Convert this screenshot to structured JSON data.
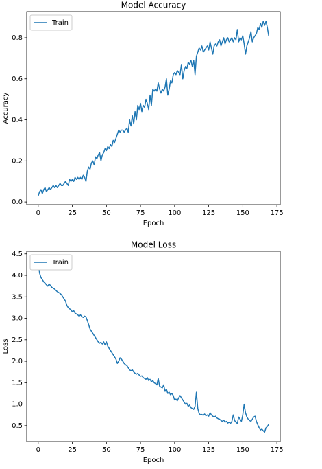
{
  "chart_data": [
    {
      "type": "line",
      "title": "Model Accuracy",
      "xlabel": "Epoch",
      "ylabel": "Accuracy",
      "legend": "upper left",
      "xlim": [
        -8.45,
        177.45
      ],
      "ylim": [
        -0.013,
        0.927
      ],
      "xticks": [
        0,
        25,
        50,
        75,
        100,
        125,
        150,
        175
      ],
      "yticks": [
        {
          "value": 0,
          "label": "0.0"
        },
        0.2,
        0.4,
        0.6,
        0.8
      ],
      "x": [
        0,
        1,
        2,
        3,
        4,
        5,
        6,
        7,
        8,
        9,
        10,
        11,
        12,
        13,
        14,
        15,
        16,
        17,
        18,
        19,
        20,
        21,
        22,
        23,
        24,
        25,
        26,
        27,
        28,
        29,
        30,
        31,
        32,
        33,
        34,
        35,
        36,
        37,
        38,
        39,
        40,
        41,
        42,
        43,
        44,
        45,
        46,
        47,
        48,
        49,
        50,
        51,
        52,
        53,
        54,
        55,
        56,
        57,
        58,
        59,
        60,
        61,
        62,
        63,
        64,
        65,
        66,
        67,
        68,
        69,
        70,
        71,
        72,
        73,
        74,
        75,
        76,
        77,
        78,
        79,
        80,
        81,
        82,
        83,
        84,
        85,
        86,
        87,
        88,
        89,
        90,
        91,
        92,
        93,
        94,
        95,
        96,
        97,
        98,
        99,
        100,
        101,
        102,
        103,
        104,
        105,
        106,
        107,
        108,
        109,
        110,
        111,
        112,
        113,
        114,
        115,
        116,
        117,
        118,
        119,
        120,
        121,
        122,
        123,
        124,
        125,
        126,
        127,
        128,
        129,
        130,
        131,
        132,
        133,
        134,
        135,
        136,
        137,
        138,
        139,
        140,
        141,
        142,
        143,
        144,
        145,
        146,
        147,
        148,
        149,
        150,
        151,
        152,
        153,
        154,
        155,
        156,
        157,
        158,
        159,
        160,
        161,
        162,
        163,
        164,
        165,
        166,
        167,
        168,
        169
      ],
      "series": [
        {
          "name": "Train",
          "color": "#1f77b4",
          "values": [
            0.03,
            0.05,
            0.06,
            0.04,
            0.06,
            0.07,
            0.05,
            0.06,
            0.07,
            0.06,
            0.07,
            0.08,
            0.07,
            0.08,
            0.07,
            0.08,
            0.09,
            0.08,
            0.08,
            0.09,
            0.1,
            0.09,
            0.08,
            0.11,
            0.1,
            0.11,
            0.1,
            0.12,
            0.11,
            0.12,
            0.11,
            0.12,
            0.11,
            0.13,
            0.12,
            0.1,
            0.15,
            0.17,
            0.16,
            0.19,
            0.2,
            0.18,
            0.22,
            0.21,
            0.23,
            0.24,
            0.2,
            0.23,
            0.24,
            0.26,
            0.25,
            0.27,
            0.26,
            0.28,
            0.27,
            0.3,
            0.29,
            0.31,
            0.33,
            0.35,
            0.34,
            0.35,
            0.35,
            0.34,
            0.35,
            0.36,
            0.34,
            0.4,
            0.37,
            0.42,
            0.38,
            0.44,
            0.4,
            0.47,
            0.45,
            0.48,
            0.44,
            0.47,
            0.46,
            0.5,
            0.48,
            0.45,
            0.52,
            0.47,
            0.55,
            0.54,
            0.55,
            0.54,
            0.58,
            0.55,
            0.53,
            0.55,
            0.54,
            0.56,
            0.6,
            0.52,
            0.55,
            0.59,
            0.58,
            0.62,
            0.63,
            0.62,
            0.64,
            0.63,
            0.62,
            0.67,
            0.6,
            0.64,
            0.66,
            0.65,
            0.68,
            0.67,
            0.69,
            0.66,
            0.69,
            0.62,
            0.71,
            0.73,
            0.75,
            0.74,
            0.76,
            0.73,
            0.74,
            0.75,
            0.76,
            0.74,
            0.78,
            0.75,
            0.72,
            0.76,
            0.77,
            0.76,
            0.78,
            0.79,
            0.76,
            0.78,
            0.8,
            0.77,
            0.79,
            0.8,
            0.78,
            0.79,
            0.8,
            0.78,
            0.8,
            0.79,
            0.84,
            0.78,
            0.8,
            0.79,
            0.81,
            0.77,
            0.72,
            0.76,
            0.78,
            0.8,
            0.83,
            0.78,
            0.8,
            0.81,
            0.82,
            0.85,
            0.84,
            0.87,
            0.85,
            0.88,
            0.86,
            0.88,
            0.85,
            0.81
          ]
        }
      ]
    },
    {
      "type": "line",
      "title": "Model Loss",
      "xlabel": "Epoch",
      "ylabel": "Loss",
      "legend": "upper left",
      "xlim": [
        -8.45,
        177.45
      ],
      "ylim": [
        0.13,
        4.56
      ],
      "xticks": [
        0,
        25,
        50,
        75,
        100,
        125,
        150,
        175
      ],
      "yticks": [
        0.5,
        {
          "value": 1,
          "label": "1.0"
        },
        1.5,
        {
          "value": 2,
          "label": "2.0"
        },
        2.5,
        {
          "value": 3,
          "label": "3.0"
        },
        3.5,
        {
          "value": 4,
          "label": "4.0"
        },
        4.5
      ],
      "x": [
        0,
        1,
        2,
        3,
        4,
        5,
        6,
        7,
        8,
        9,
        10,
        11,
        12,
        13,
        14,
        15,
        16,
        17,
        18,
        19,
        20,
        21,
        22,
        23,
        24,
        25,
        26,
        27,
        28,
        29,
        30,
        31,
        32,
        33,
        34,
        35,
        36,
        37,
        38,
        39,
        40,
        41,
        42,
        43,
        44,
        45,
        46,
        47,
        48,
        49,
        50,
        51,
        52,
        53,
        54,
        55,
        56,
        57,
        58,
        59,
        60,
        61,
        62,
        63,
        64,
        65,
        66,
        67,
        68,
        69,
        70,
        71,
        72,
        73,
        74,
        75,
        76,
        77,
        78,
        79,
        80,
        81,
        82,
        83,
        84,
        85,
        86,
        87,
        88,
        89,
        90,
        91,
        92,
        93,
        94,
        95,
        96,
        97,
        98,
        99,
        100,
        101,
        102,
        103,
        104,
        105,
        106,
        107,
        108,
        109,
        110,
        111,
        112,
        113,
        114,
        115,
        116,
        117,
        118,
        119,
        120,
        121,
        122,
        123,
        124,
        125,
        126,
        127,
        128,
        129,
        130,
        131,
        132,
        133,
        134,
        135,
        136,
        137,
        138,
        139,
        140,
        141,
        142,
        143,
        144,
        145,
        146,
        147,
        148,
        149,
        150,
        151,
        152,
        153,
        154,
        155,
        156,
        157,
        158,
        159,
        160,
        161,
        162,
        163,
        164,
        165,
        166,
        167,
        168,
        169
      ],
      "series": [
        {
          "name": "Train",
          "color": "#1f77b4",
          "values": [
            4.3,
            4.05,
            3.95,
            3.9,
            3.85,
            3.82,
            3.78,
            3.75,
            3.8,
            3.76,
            3.72,
            3.7,
            3.68,
            3.65,
            3.62,
            3.6,
            3.58,
            3.55,
            3.5,
            3.45,
            3.4,
            3.3,
            3.25,
            3.22,
            3.2,
            3.15,
            3.18,
            3.12,
            3.1,
            3.08,
            3.05,
            3.08,
            3.04,
            3.02,
            3.05,
            3.03,
            2.95,
            2.85,
            2.75,
            2.7,
            2.65,
            2.6,
            2.55,
            2.5,
            2.45,
            2.42,
            2.44,
            2.4,
            2.45,
            2.38,
            2.45,
            2.35,
            2.3,
            2.25,
            2.2,
            2.15,
            2.1,
            2.05,
            1.95,
            2.0,
            2.08,
            2.05,
            2.0,
            1.95,
            1.92,
            1.9,
            1.85,
            1.8,
            1.78,
            1.8,
            1.75,
            1.72,
            1.7,
            1.72,
            1.68,
            1.65,
            1.66,
            1.62,
            1.6,
            1.58,
            1.62,
            1.55,
            1.58,
            1.52,
            1.55,
            1.5,
            1.48,
            1.45,
            1.6,
            1.42,
            1.4,
            1.38,
            1.45,
            1.3,
            1.35,
            1.25,
            1.28,
            1.22,
            1.25,
            1.2,
            1.1,
            1.12,
            1.08,
            1.15,
            1.2,
            1.15,
            1.1,
            1.05,
            1.0,
            1.02,
            0.95,
            0.98,
            0.92,
            0.9,
            0.88,
            0.95,
            1.28,
            0.9,
            0.78,
            0.75,
            0.76,
            0.74,
            0.77,
            0.73,
            0.75,
            0.72,
            0.8,
            0.75,
            0.72,
            0.7,
            0.72,
            0.68,
            0.66,
            0.65,
            0.62,
            0.6,
            0.63,
            0.58,
            0.6,
            0.56,
            0.58,
            0.55,
            0.6,
            0.75,
            0.62,
            0.58,
            0.55,
            0.7,
            0.65,
            0.6,
            0.75,
            1.0,
            0.8,
            0.7,
            0.65,
            0.62,
            0.6,
            0.65,
            0.7,
            0.72,
            0.6,
            0.52,
            0.45,
            0.4,
            0.42,
            0.38,
            0.35,
            0.45,
            0.48,
            0.53
          ]
        }
      ]
    }
  ]
}
